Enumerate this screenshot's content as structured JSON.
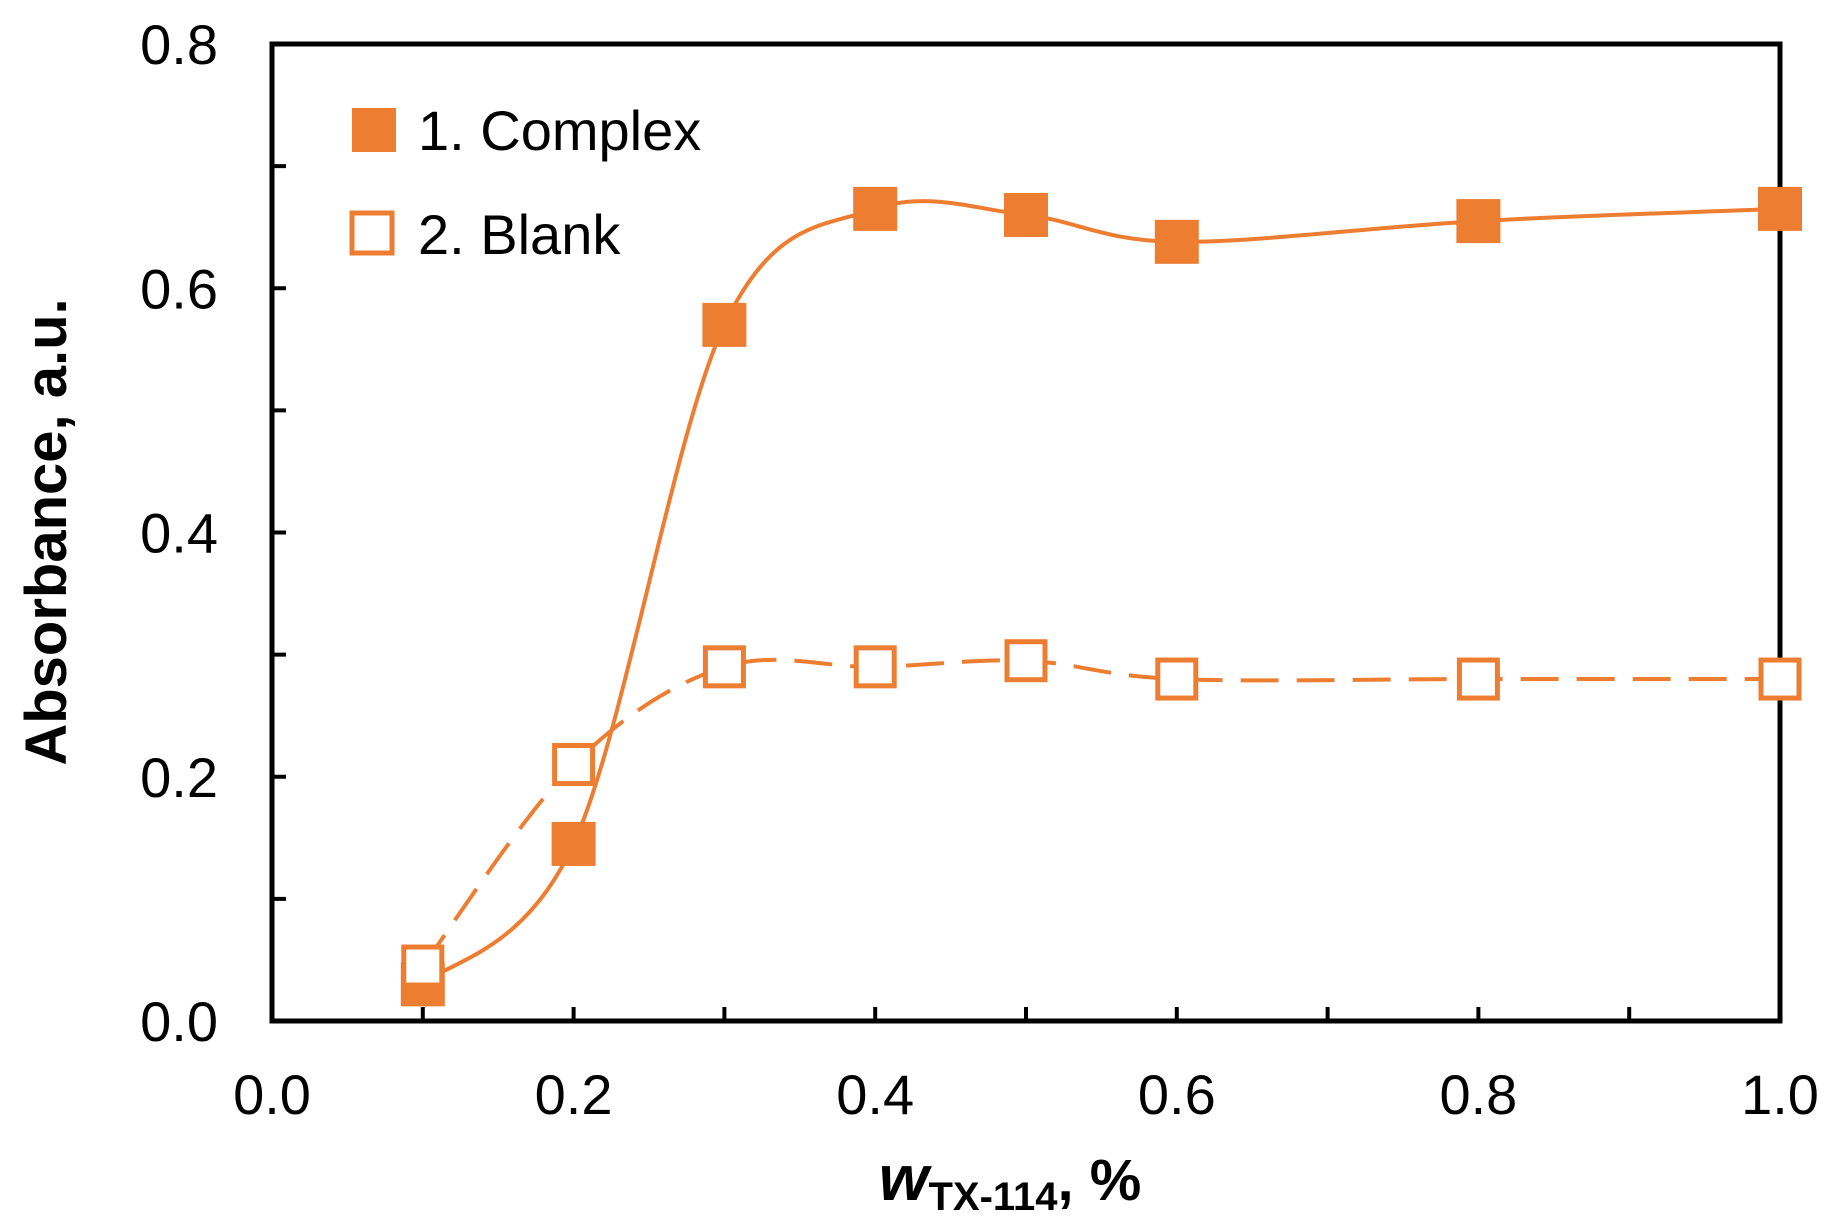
{
  "chart_data": {
    "type": "line",
    "xlim": [
      0.0,
      1.0
    ],
    "ylim": [
      0.0,
      0.8
    ],
    "x_ticks": [
      "0.0",
      "0.2",
      "0.4",
      "0.6",
      "0.8",
      "1.0"
    ],
    "y_ticks": [
      "0.0",
      "0.2",
      "0.4",
      "0.6",
      "0.8"
    ],
    "x_tick_values": [
      0.0,
      0.2,
      0.4,
      0.6,
      0.8,
      1.0
    ],
    "y_tick_values": [
      0.0,
      0.2,
      0.4,
      0.6,
      0.8
    ],
    "x_minor_tick_values": [
      0.1,
      0.3,
      0.5,
      0.7,
      0.9
    ],
    "y_minor_tick_values": [
      0.1,
      0.3,
      0.5,
      0.7
    ],
    "xlabel": {
      "main": "w",
      "sub": "TX-114",
      "suffix": ", %"
    },
    "ylabel": "Absorbance, a.u.",
    "grid": false,
    "legend_position": "top-left",
    "color": "#ED7D31",
    "series": [
      {
        "name": "1. Complex",
        "marker": "filled-square",
        "line_style": "solid",
        "x": [
          0.1,
          0.2,
          0.3,
          0.4,
          0.5,
          0.6,
          0.8,
          1.0
        ],
        "y": [
          0.03,
          0.145,
          0.57,
          0.665,
          0.66,
          0.638,
          0.655,
          0.665
        ]
      },
      {
        "name": "2. Blank",
        "marker": "open-square",
        "line_style": "dashed",
        "x": [
          0.1,
          0.2,
          0.3,
          0.4,
          0.5,
          0.6,
          0.8,
          1.0
        ],
        "y": [
          0.045,
          0.21,
          0.29,
          0.29,
          0.295,
          0.28,
          0.28,
          0.28
        ]
      }
    ]
  }
}
